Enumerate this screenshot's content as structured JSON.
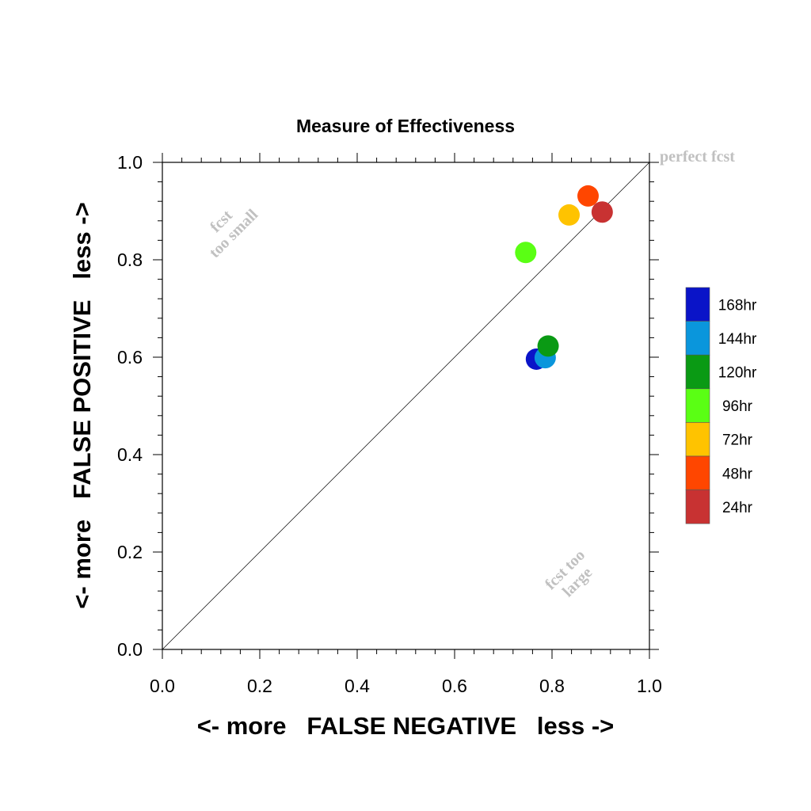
{
  "chart_data": {
    "type": "scatter",
    "title": "Measure of Effectiveness",
    "xlabel": "<- more   FALSE NEGATIVE   less ->",
    "ylabel": "<- more   FALSE POSITIVE   less ->",
    "xlim": [
      0.0,
      1.0
    ],
    "ylim": [
      0.0,
      1.0
    ],
    "xticks": [
      "0.0",
      "0.2",
      "0.4",
      "0.6",
      "0.8",
      "1.0"
    ],
    "yticks": [
      "0.0",
      "0.2",
      "0.4",
      "0.6",
      "0.8",
      "1.0"
    ],
    "grid": false,
    "legend_position": "right",
    "diagonal_line": true,
    "annotations": {
      "perfect": "perfect fcst",
      "too_small": [
        "fcst",
        "too small"
      ],
      "too_large": [
        "fcst too",
        "large"
      ]
    },
    "series": [
      {
        "name": "168hr",
        "color": "#0a14c8",
        "x": 0.768,
        "y": 0.596
      },
      {
        "name": "144hr",
        "color": "#0a96dc",
        "x": 0.786,
        "y": 0.599
      },
      {
        "name": "120hr",
        "color": "#0a9a14",
        "x": 0.792,
        "y": 0.623
      },
      {
        "name": "96hr",
        "color": "#5aff14",
        "x": 0.746,
        "y": 0.815
      },
      {
        "name": "72hr",
        "color": "#ffc300",
        "x": 0.835,
        "y": 0.892
      },
      {
        "name": "48hr",
        "color": "#ff4600",
        "x": 0.874,
        "y": 0.931
      },
      {
        "name": "24hr",
        "color": "#c83232",
        "x": 0.903,
        "y": 0.898
      }
    ],
    "legend_order": [
      "168hr",
      "144hr",
      "120hr",
      "96hr",
      "72hr",
      "48hr",
      "24hr"
    ]
  }
}
